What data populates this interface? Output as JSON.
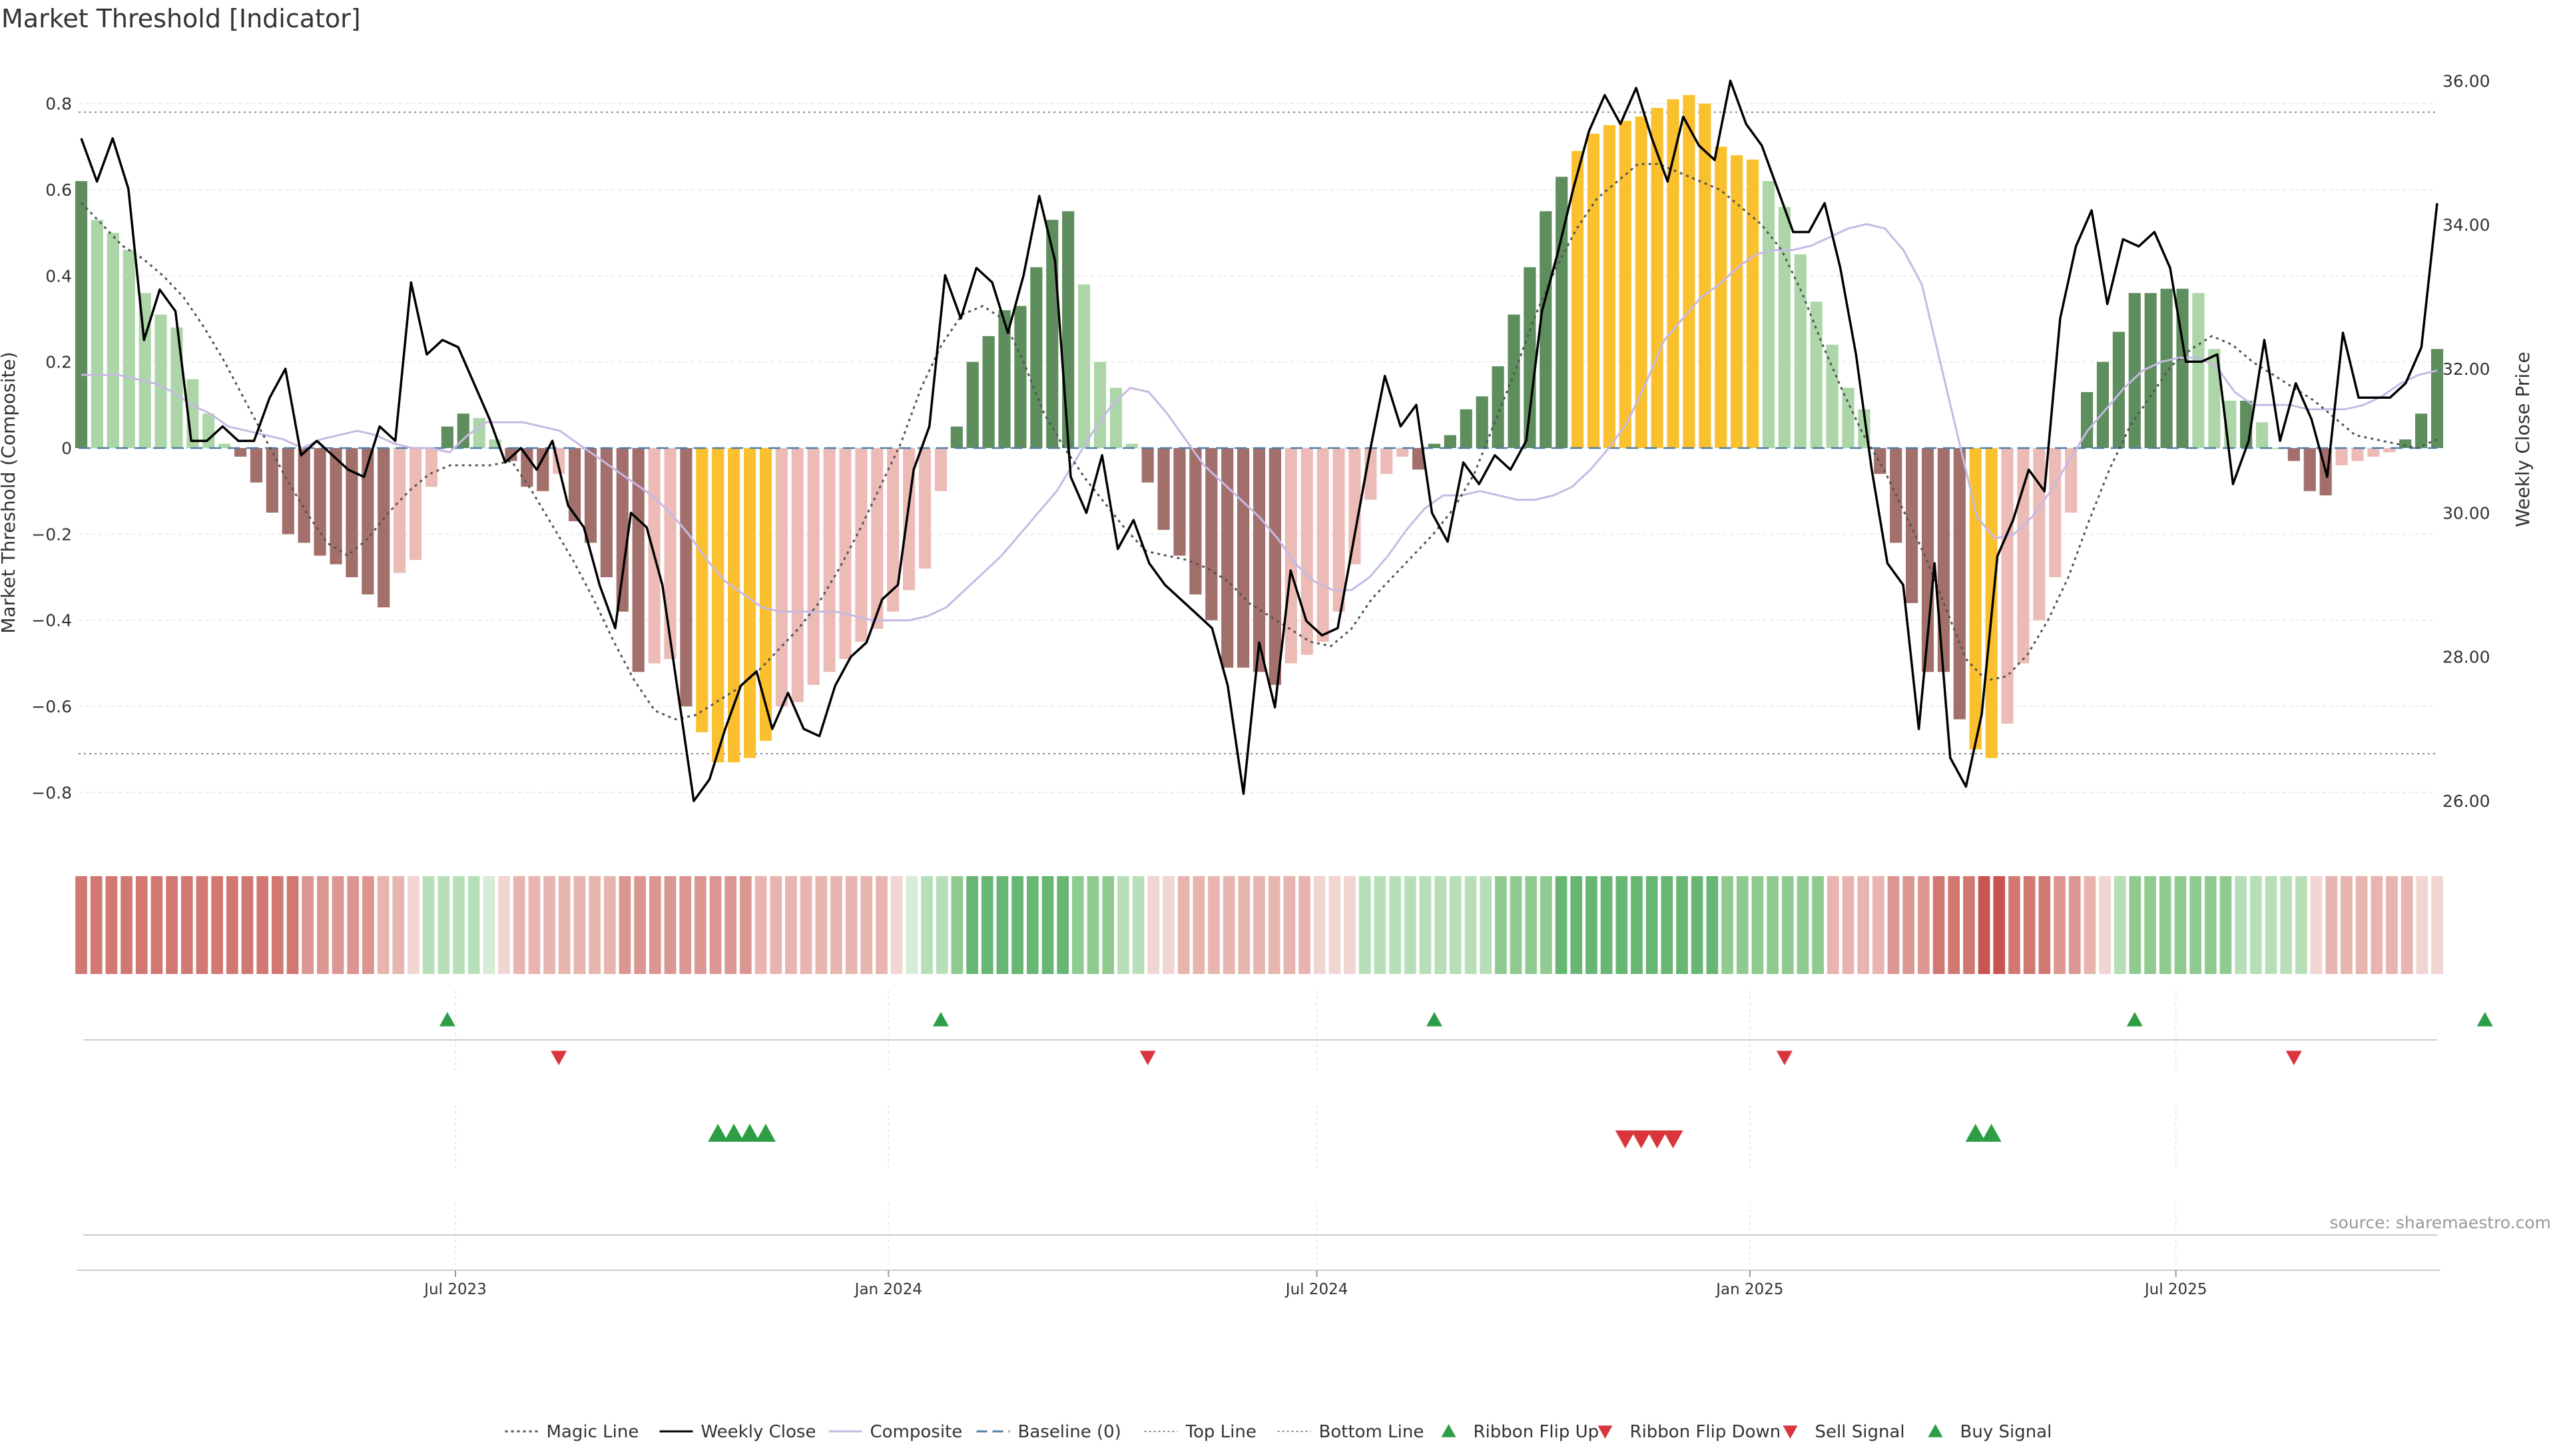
{
  "title": "Market Threshold [Indicator]",
  "source": "source: sharemaestro.com",
  "chart_data": {
    "type": "bar",
    "x_start": "2023-01-23",
    "x_end": "2025-10-20",
    "frequency": "weekly",
    "ylabel_left": "Market Threshold (Composite)",
    "ylabel_right": "Weekly Close Price",
    "ylim_left": [
      -0.92,
      0.92
    ],
    "ylim_right": [
      25.4,
      36.4
    ],
    "yticks_left": [
      0.8,
      0.6,
      0.4,
      0.2,
      0,
      -0.2,
      -0.4,
      -0.6,
      -0.8
    ],
    "ytick_labels_left": [
      "0.8",
      "0.6",
      "0.4",
      "0.2",
      "0",
      "−0.2",
      "−0.4",
      "−0.6",
      "−0.8"
    ],
    "yticks_right": [
      36,
      34,
      32,
      30,
      28,
      26
    ],
    "ytick_labels_right": [
      "36.00",
      "34.00",
      "32.00",
      "30.00",
      "28.00",
      "26.00"
    ],
    "xticks": [
      {
        "label": "Jul 2023",
        "date": "2023-07-01"
      },
      {
        "label": "Jan 2024",
        "date": "2024-01-01"
      },
      {
        "label": "Jul 2024",
        "date": "2024-07-01"
      },
      {
        "label": "Jan 2025",
        "date": "2025-01-01"
      },
      {
        "label": "Jul 2025",
        "date": "2025-07-01"
      }
    ],
    "top_line": 0.78,
    "bottom_line": -0.71,
    "baseline": 0,
    "composite_bars": [
      0.62,
      0.53,
      0.5,
      0.46,
      0.36,
      0.31,
      0.28,
      0.16,
      0.08,
      0.01,
      -0.02,
      -0.08,
      -0.15,
      -0.2,
      -0.22,
      -0.25,
      -0.27,
      -0.3,
      -0.34,
      -0.37,
      -0.29,
      -0.26,
      -0.09,
      0.05,
      0.08,
      0.07,
      0.02,
      -0.03,
      -0.09,
      -0.1,
      -0.06,
      -0.17,
      -0.22,
      -0.3,
      -0.38,
      -0.52,
      -0.5,
      -0.49,
      -0.6,
      -0.66,
      -0.73,
      -0.73,
      -0.72,
      -0.68,
      -0.6,
      -0.59,
      -0.55,
      -0.52,
      -0.49,
      -0.45,
      -0.42,
      -0.38,
      -0.33,
      -0.28,
      -0.1,
      0.05,
      0.2,
      0.26,
      0.32,
      0.33,
      0.42,
      0.53,
      0.55,
      0.38,
      0.2,
      0.14,
      0.01,
      -0.08,
      -0.19,
      -0.25,
      -0.34,
      -0.4,
      -0.51,
      -0.51,
      -0.52,
      -0.55,
      -0.5,
      -0.48,
      -0.45,
      -0.38,
      -0.27,
      -0.12,
      -0.06,
      -0.02,
      -0.05,
      0.01,
      0.03,
      0.09,
      0.12,
      0.19,
      0.31,
      0.42,
      0.55,
      0.63,
      0.69,
      0.73,
      0.75,
      0.76,
      0.77,
      0.79,
      0.81,
      0.82,
      0.8,
      0.7,
      0.68,
      0.67,
      0.62,
      0.56,
      0.45,
      0.34,
      0.24,
      0.14,
      0.09,
      -0.06,
      -0.22,
      -0.36,
      -0.52,
      -0.52,
      -0.63,
      -0.7,
      -0.72,
      -0.64,
      -0.5,
      -0.4,
      -0.3,
      -0.15,
      0.13,
      0.2,
      0.27,
      0.36,
      0.36,
      0.37,
      0.37,
      0.36,
      0.23,
      0.11,
      0.11,
      0.06,
      0.0,
      -0.03,
      -0.1,
      -0.11,
      -0.04,
      -0.03,
      -0.02,
      -0.01,
      0.02,
      0.08,
      0.23
    ],
    "weekly_close": [
      35.2,
      34.6,
      35.2,
      34.5,
      32.4,
      33.1,
      32.8,
      31.0,
      31.0,
      31.2,
      31.0,
      31.0,
      31.6,
      32.0,
      30.8,
      31.0,
      30.8,
      30.6,
      30.5,
      31.2,
      31.0,
      33.2,
      32.2,
      32.4,
      32.3,
      31.8,
      31.3,
      30.7,
      30.9,
      30.6,
      31.0,
      30.1,
      29.8,
      29.0,
      28.4,
      30.0,
      29.8,
      29.0,
      27.5,
      26.0,
      26.3,
      27.0,
      27.6,
      27.8,
      27.0,
      27.5,
      27.0,
      26.9,
      27.6,
      28.0,
      28.2,
      28.8,
      29.0,
      30.6,
      31.2,
      33.3,
      32.7,
      33.4,
      33.2,
      32.5,
      33.3,
      34.4,
      33.5,
      30.5,
      30.0,
      30.8,
      29.5,
      29.9,
      29.3,
      29.0,
      28.8,
      28.6,
      28.4,
      27.6,
      26.1,
      28.2,
      27.3,
      29.2,
      28.5,
      28.3,
      28.4,
      29.6,
      30.8,
      31.9,
      31.2,
      31.5,
      30.0,
      29.6,
      30.7,
      30.4,
      30.8,
      30.6,
      31.0,
      32.8,
      33.6,
      34.5,
      35.3,
      35.8,
      35.4,
      35.9,
      35.2,
      34.6,
      35.5,
      35.1,
      34.9,
      36.0,
      35.4,
      35.1,
      34.5,
      33.9,
      33.9,
      34.3,
      33.4,
      32.2,
      30.6,
      29.3,
      29.0,
      27.0,
      29.3,
      26.6,
      26.2,
      27.2,
      29.4,
      29.9,
      30.6,
      30.3,
      32.7,
      33.7,
      34.2,
      32.9,
      33.8,
      33.7,
      33.9,
      33.4,
      32.1,
      32.1,
      32.2,
      30.4,
      31.0,
      32.4,
      31.0,
      31.8,
      31.3,
      30.5,
      32.5,
      31.6,
      31.6,
      31.6,
      31.8,
      32.3,
      34.3
    ],
    "magic_line": [
      0.57,
      0.52,
      0.47,
      0.44,
      0.4,
      0.35,
      0.28,
      0.2,
      0.11,
      0.02,
      -0.07,
      -0.15,
      -0.22,
      -0.25,
      -0.21,
      -0.15,
      -0.1,
      -0.06,
      -0.04,
      -0.04,
      -0.04,
      -0.03,
      -0.1,
      -0.18,
      -0.26,
      -0.35,
      -0.45,
      -0.54,
      -0.61,
      -0.63,
      -0.62,
      -0.59,
      -0.56,
      -0.52,
      -0.47,
      -0.42,
      -0.36,
      -0.28,
      -0.19,
      -0.09,
      0.01,
      0.14,
      0.24,
      0.31,
      0.33,
      0.3,
      0.2,
      0.08,
      0.0,
      -0.07,
      -0.13,
      -0.19,
      -0.24,
      -0.25,
      -0.26,
      -0.28,
      -0.31,
      -0.36,
      -0.39,
      -0.42,
      -0.45,
      -0.46,
      -0.42,
      -0.35,
      -0.3,
      -0.25,
      -0.2,
      -0.14,
      -0.06,
      0.06,
      0.18,
      0.31,
      0.42,
      0.51,
      0.58,
      0.62,
      0.66,
      0.66,
      0.64,
      0.62,
      0.6,
      0.56,
      0.52,
      0.46,
      0.36,
      0.24,
      0.13,
      0.03,
      -0.05,
      -0.15,
      -0.25,
      -0.37,
      -0.49,
      -0.54,
      -0.53,
      -0.48,
      -0.4,
      -0.3,
      -0.17,
      -0.05,
      0.05,
      0.12,
      0.19,
      0.23,
      0.26,
      0.24,
      0.2,
      0.17,
      0.14,
      0.11,
      0.07,
      0.03,
      0.02,
      0.01,
      0.0,
      0.02
    ],
    "composite_line": [
      0.17,
      0.17,
      0.17,
      0.16,
      0.15,
      0.13,
      0.1,
      0.08,
      0.05,
      0.04,
      0.03,
      0.02,
      0.0,
      0.02,
      0.03,
      0.04,
      0.03,
      0.01,
      0.0,
      0.0,
      -0.01,
      0.03,
      0.06,
      0.06,
      0.06,
      0.05,
      0.04,
      0.01,
      -0.02,
      -0.05,
      -0.08,
      -0.11,
      -0.15,
      -0.2,
      -0.26,
      -0.31,
      -0.34,
      -0.37,
      -0.38,
      -0.38,
      -0.38,
      -0.38,
      -0.39,
      -0.4,
      -0.4,
      -0.4,
      -0.39,
      -0.37,
      -0.33,
      -0.29,
      -0.25,
      -0.2,
      -0.15,
      -0.1,
      -0.03,
      0.04,
      0.1,
      0.14,
      0.13,
      0.08,
      0.02,
      -0.04,
      -0.08,
      -0.12,
      -0.16,
      -0.21,
      -0.27,
      -0.31,
      -0.33,
      -0.33,
      -0.3,
      -0.25,
      -0.19,
      -0.14,
      -0.11,
      -0.11,
      -0.1,
      -0.11,
      -0.12,
      -0.12,
      -0.11,
      -0.09,
      -0.05,
      0.0,
      0.06,
      0.15,
      0.25,
      0.3,
      0.35,
      0.38,
      0.42,
      0.45,
      0.46,
      0.46,
      0.47,
      0.49,
      0.51,
      0.52,
      0.51,
      0.46,
      0.38,
      0.2,
      0.02,
      -0.16,
      -0.21,
      -0.2,
      -0.16,
      -0.1,
      -0.03,
      0.04,
      0.09,
      0.14,
      0.18,
      0.2,
      0.21,
      0.21,
      0.19,
      0.13,
      0.1,
      0.1,
      0.1,
      0.09,
      0.09,
      0.09,
      0.1,
      0.12,
      0.15,
      0.17,
      0.18
    ],
    "ribbon": [
      "r3",
      "r3",
      "r3",
      "r3",
      "r3",
      "r3",
      "r3",
      "r3",
      "r3",
      "r3",
      "r3",
      "r3",
      "r3",
      "r3",
      "r3",
      "r2",
      "r2",
      "r2",
      "r2",
      "r2",
      "r1",
      "r1",
      "r0",
      "g1",
      "g1",
      "g1",
      "g1",
      "g0",
      "r0",
      "r1",
      "r1",
      "r1",
      "r1",
      "r1",
      "r1",
      "r1",
      "r2",
      "r2",
      "r2",
      "r2",
      "r2",
      "r2",
      "r2",
      "r2",
      "r2",
      "r1",
      "r1",
      "r1",
      "r1",
      "r1",
      "r1",
      "r1",
      "r1",
      "r1",
      "r0",
      "g0",
      "g1",
      "g1",
      "g2",
      "g3",
      "g3",
      "g3",
      "g3",
      "g3",
      "g3",
      "g3",
      "g2",
      "g2",
      "g2",
      "g1",
      "g1",
      "r0",
      "r0",
      "r1",
      "r1",
      "r1",
      "r1",
      "r1",
      "r1",
      "r1",
      "r1",
      "r1",
      "r0",
      "r0",
      "r0",
      "g1",
      "g1",
      "g1",
      "g1",
      "g1",
      "g1",
      "g1",
      "g1",
      "g1",
      "g2",
      "g2",
      "g2",
      "g2",
      "g3",
      "g3",
      "g3",
      "g3",
      "g3",
      "g3",
      "g3",
      "g3",
      "g3",
      "g3",
      "g3",
      "g2",
      "g2",
      "g2",
      "g2",
      "g2",
      "g2",
      "g2",
      "r1",
      "r1",
      "r1",
      "r1",
      "r2",
      "r2",
      "r2",
      "r3",
      "r3",
      "r3",
      "r4",
      "r4",
      "r3",
      "r3",
      "r3",
      "r2",
      "r2",
      "r1",
      "r0",
      "g1",
      "g2",
      "g2",
      "g2",
      "g2",
      "g2",
      "g2",
      "g2",
      "g1",
      "g1",
      "g1",
      "g1",
      "g1",
      "r0",
      "r1",
      "r1",
      "r1",
      "r1",
      "r1",
      "r1",
      "r0",
      "r0"
    ],
    "ribbon_flip_up_weeks": [
      23,
      54,
      85,
      129,
      151
    ],
    "ribbon_flip_down_weeks": [
      30,
      67,
      107,
      139
    ],
    "buy_signal_weeks": [
      40,
      41,
      42,
      43,
      119,
      120
    ],
    "sell_signal_weeks": [
      97,
      98,
      99,
      100
    ],
    "legend": [
      {
        "label": "Magic Line",
        "marker": "dotted-line"
      },
      {
        "label": "Weekly Close",
        "marker": "solid-line"
      },
      {
        "label": "Composite",
        "marker": "lavender-line"
      },
      {
        "label": "Baseline (0)",
        "marker": "dashed-line"
      },
      {
        "label": "Top Line",
        "marker": "fine-dotted-line"
      },
      {
        "label": "Bottom Line",
        "marker": "fine-dotted-line"
      },
      {
        "label": "Ribbon Flip Up",
        "marker": "green-triangle-up"
      },
      {
        "label": "Ribbon Flip Down",
        "marker": "red-triangle-down"
      },
      {
        "label": "Sell Signal",
        "marker": "red-triangle-down"
      },
      {
        "label": "Buy Signal",
        "marker": "green-triangle-up"
      }
    ]
  },
  "colors": {
    "bar_pos_strong": "#5e8d5e",
    "bar_pos_weak": "#acd6a8",
    "bar_neg_strong": "#a26f6b",
    "bar_neg_weak": "#ecbbb6",
    "bar_extreme": "#fbc02d",
    "weekly_close": "#000000",
    "composite": "#c7b9e3",
    "magic_line": "#555555",
    "baseline": "#4f7fa5",
    "threshold_lines": "#888888",
    "signal_green": "#2e9e46",
    "signal_red": "#d9353c",
    "ribbon": {
      "r4": "#c95550",
      "r3": "#d27872",
      "r2": "#dc9692",
      "r1": "#e7b4b0",
      "r0": "#f1d5d3",
      "g0": "#d6ecd6",
      "g1": "#b7dfb7",
      "g2": "#8fcb91",
      "g3": "#68b674"
    }
  }
}
